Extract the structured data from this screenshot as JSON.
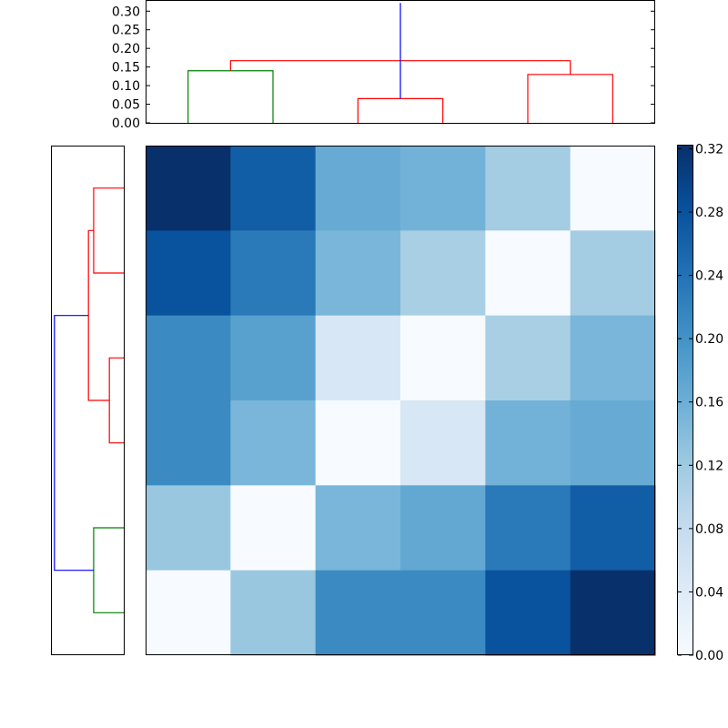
{
  "chart_data": [
    {
      "type": "dendrogram",
      "orientation": "top",
      "ylim": [
        0,
        0.33
      ],
      "yticks": [
        "0.00",
        "0.05",
        "0.10",
        "0.15",
        "0.20",
        "0.25",
        "0.30"
      ],
      "leaf_count": 6,
      "links": [
        {
          "left": 0,
          "right": 1,
          "height": 0.14,
          "color": "#008000"
        },
        {
          "left": 2,
          "right": 3,
          "height": 0.065,
          "color": "#ff0000"
        },
        {
          "left": 4,
          "right": 5,
          "height": 0.13,
          "color": "#ff0000"
        },
        {
          "left": 6,
          "right": 8,
          "height": 0.167,
          "color": "#ff0000"
        },
        {
          "left": 7,
          "right": 9,
          "height": 0.322,
          "color": "#0000ff"
        }
      ]
    },
    {
      "type": "dendrogram",
      "orientation": "left",
      "leaf_count": 6,
      "links": [
        {
          "left": 0,
          "right": 1,
          "height": 0.23,
          "color": "#ff0000"
        },
        {
          "left": 2,
          "right": 3,
          "height": 0.11,
          "color": "#ff0000"
        },
        {
          "left": 4,
          "right": 5,
          "height": 0.23,
          "color": "#008000"
        },
        {
          "left": 6,
          "right": 7,
          "height": 0.27,
          "color": "#ff0000"
        },
        {
          "left": 8,
          "right": 9,
          "height": 0.53,
          "color": "#0000ff"
        }
      ]
    },
    {
      "type": "heatmap",
      "colormap": "Blues",
      "vmin": 0,
      "vmax": 0.322,
      "values": [
        [
          0.322,
          0.265,
          0.165,
          0.155,
          0.115,
          0.0
        ],
        [
          0.28,
          0.23,
          0.15,
          0.11,
          0.0,
          0.115
        ],
        [
          0.21,
          0.18,
          0.05,
          0.0,
          0.11,
          0.15
        ],
        [
          0.21,
          0.15,
          0.0,
          0.05,
          0.155,
          0.165
        ],
        [
          0.125,
          0.0,
          0.15,
          0.17,
          0.23,
          0.265
        ],
        [
          0.0,
          0.125,
          0.21,
          0.21,
          0.28,
          0.322
        ]
      ]
    },
    {
      "type": "colorbar",
      "ticks": [
        "0.00",
        "0.04",
        "0.08",
        "0.12",
        "0.16",
        "0.20",
        "0.24",
        "0.28",
        "0.32"
      ],
      "tick_values": [
        0,
        0.04,
        0.08,
        0.12,
        0.16,
        0.2,
        0.24,
        0.28,
        0.32
      ],
      "vmin": 0,
      "vmax": 0.322
    }
  ]
}
